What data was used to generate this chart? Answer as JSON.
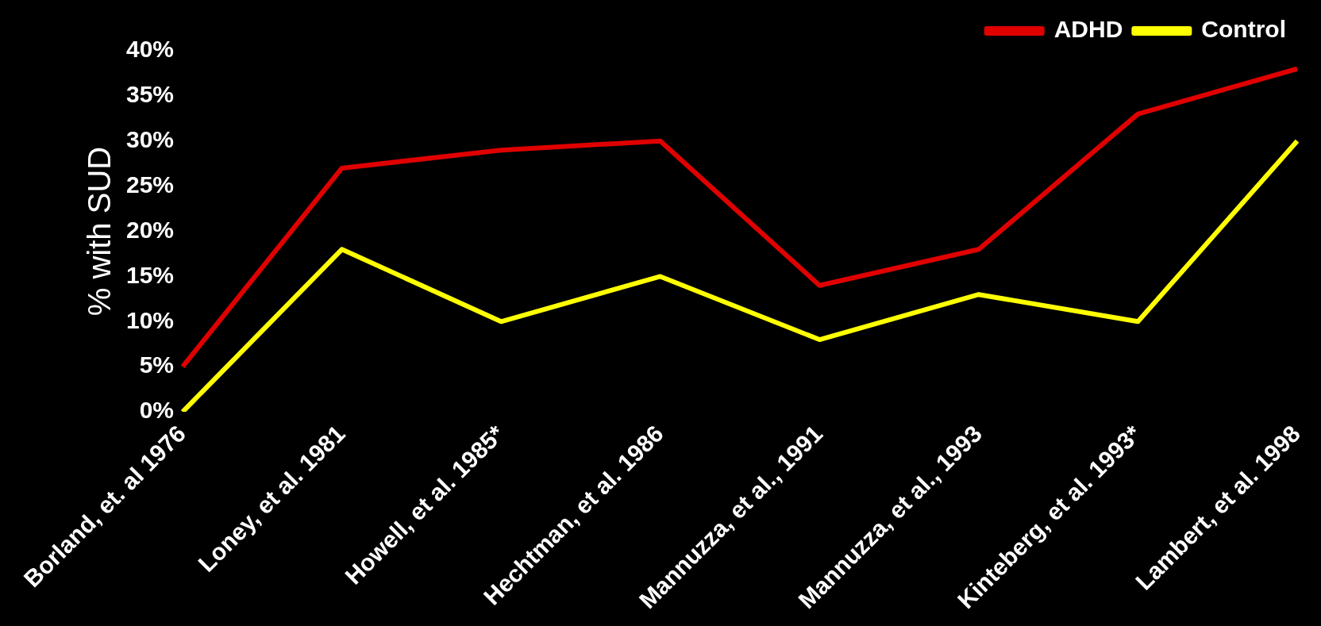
{
  "chart_data": {
    "type": "line",
    "ylabel": "% with SUD",
    "categories": [
      "Borland, et. al 1976",
      "Loney, et al. 1981",
      "Howell, et al. 1985*",
      "Hechtman, et al. 1986",
      "Mannuzza, et al., 1991",
      "Mannuzza, et al., 1993",
      "Kinteberg, et al. 1993*",
      "Lambert, et al. 1998"
    ],
    "series": [
      {
        "name": "ADHD",
        "color": "#e00000",
        "values": [
          5,
          27,
          29,
          30,
          14,
          18,
          33,
          38
        ]
      },
      {
        "name": "Control",
        "color": "#ffff00",
        "values": [
          0,
          18,
          10,
          15,
          8,
          13,
          10,
          30
        ]
      }
    ],
    "ylim": [
      0,
      40
    ],
    "yticks": [
      {
        "value": 0,
        "label": "0%"
      },
      {
        "value": 5,
        "label": "5%"
      },
      {
        "value": 10,
        "label": "10%"
      },
      {
        "value": 15,
        "label": "15%"
      },
      {
        "value": 20,
        "label": "20%"
      },
      {
        "value": 25,
        "label": "25%"
      },
      {
        "value": 30,
        "label": "30%"
      },
      {
        "value": 35,
        "label": "35%"
      },
      {
        "value": 40,
        "label": "40%"
      }
    ],
    "legend": "top right"
  }
}
